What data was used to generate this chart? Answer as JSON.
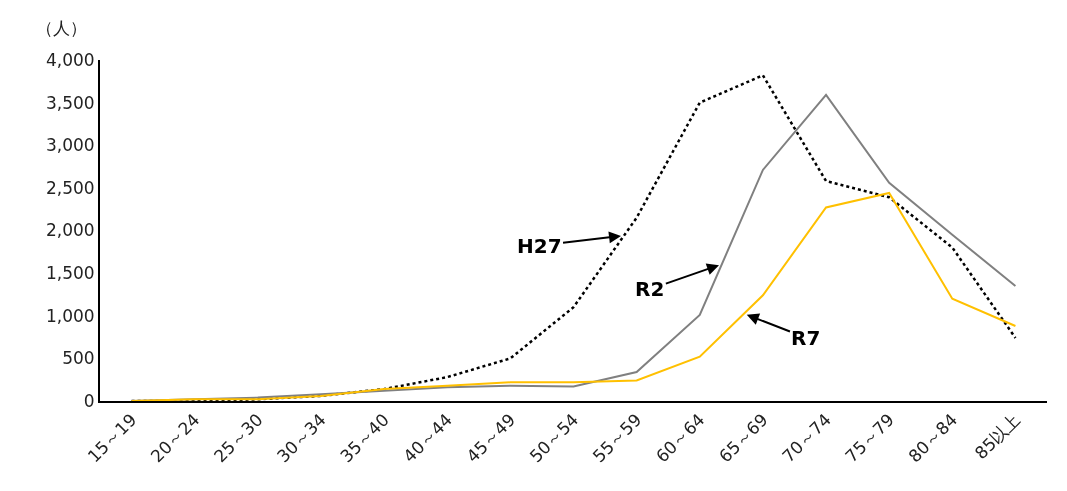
{
  "chart_data": {
    "type": "line",
    "ylabel": "（人）",
    "categories": [
      "15～19",
      "20～24",
      "25～30",
      "30～34",
      "35～40",
      "40～44",
      "45～49",
      "50～54",
      "55～59",
      "60～64",
      "65～69",
      "70～74",
      "75～79",
      "80～84",
      "85以上"
    ],
    "series": [
      {
        "name": "H27",
        "color": "#000000",
        "line_style": "dotted",
        "values": [
          0,
          0,
          20,
          60,
          140,
          280,
          500,
          1100,
          2150,
          3500,
          3820,
          2580,
          2390,
          1800,
          740
        ]
      },
      {
        "name": "R2",
        "color": "#808080",
        "line_style": "solid",
        "values": [
          0,
          20,
          40,
          80,
          120,
          160,
          180,
          170,
          340,
          1010,
          2710,
          3590,
          2560,
          1950,
          1350
        ]
      },
      {
        "name": "R7",
        "color": "#ffc000",
        "line_style": "solid",
        "values": [
          0,
          20,
          20,
          60,
          140,
          180,
          220,
          220,
          240,
          520,
          1240,
          2270,
          2440,
          1200,
          880
        ]
      }
    ],
    "ylim": [
      0,
      4000
    ],
    "yticks": [
      {
        "value": 0,
        "label": "0"
      },
      {
        "value": 500,
        "label": "500"
      },
      {
        "value": 1000,
        "label": "1,000"
      },
      {
        "value": 1500,
        "label": "1,500"
      },
      {
        "value": 2000,
        "label": "2,000"
      },
      {
        "value": 2500,
        "label": "2,500"
      },
      {
        "value": 3000,
        "label": "3,000"
      },
      {
        "value": 3500,
        "label": "3,500"
      },
      {
        "value": 4000,
        "label": "4,000"
      }
    ],
    "marker": "none"
  }
}
